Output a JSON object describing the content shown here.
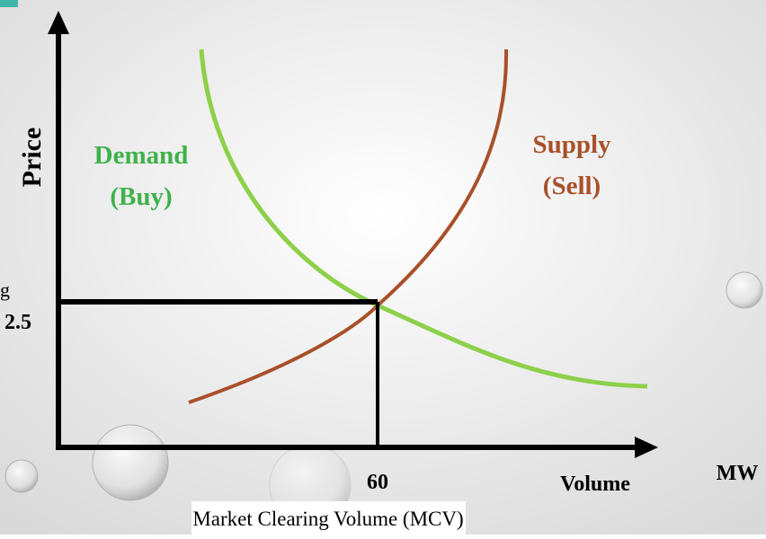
{
  "axis": {
    "y_label": "Price",
    "x_label": "Volume",
    "x_unit": "MW",
    "price_partial": "g",
    "price_value": "2.5",
    "volume_value": "60"
  },
  "demand": {
    "label": "Demand",
    "sublabel": "(Buy)"
  },
  "supply": {
    "label": "Supply",
    "sublabel": "(Sell)"
  },
  "caption": "Market Clearing Volume (MCV)"
}
